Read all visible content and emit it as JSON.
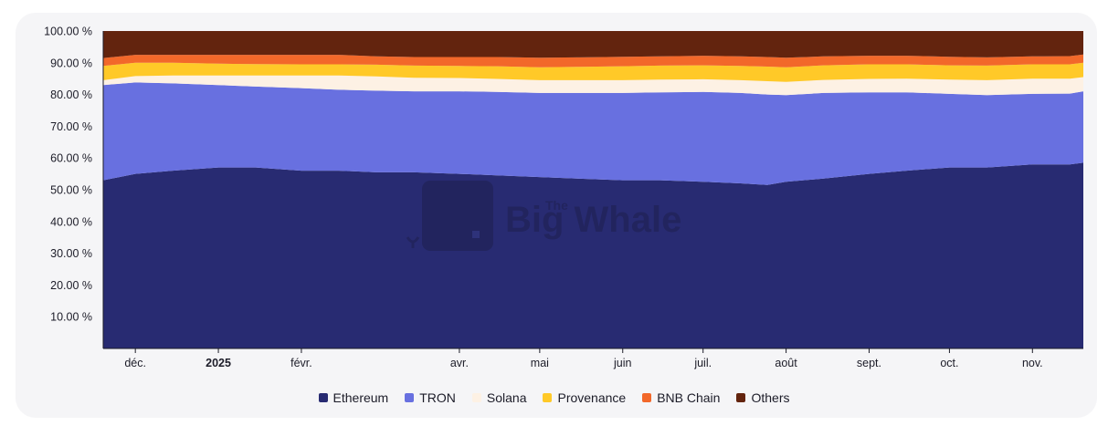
{
  "watermark": {
    "brand_small": "The",
    "brand_text": "Big Whale"
  },
  "chart_data": {
    "type": "area",
    "stacked": true,
    "normalized": true,
    "x": [
      "2024-11-19",
      "2024-12-01",
      "2024-12-15",
      "2025-01-01",
      "2025-01-15",
      "2025-02-01",
      "2025-02-15",
      "2025-03-01",
      "2025-03-15",
      "2025-04-01",
      "2025-04-15",
      "2025-05-01",
      "2025-05-15",
      "2025-06-01",
      "2025-06-15",
      "2025-07-01",
      "2025-07-15",
      "2025-07-25",
      "2025-08-01",
      "2025-08-15",
      "2025-09-01",
      "2025-09-15",
      "2025-10-01",
      "2025-10-15",
      "2025-11-01",
      "2025-11-15",
      "2025-11-20"
    ],
    "series": [
      {
        "name": "Ethereum",
        "color": "#282b72",
        "values": [
          53,
          55,
          56,
          57,
          57,
          56,
          56,
          55.5,
          55.5,
          55,
          54.5,
          54,
          53.5,
          53,
          53,
          52.5,
          52,
          51.5,
          52.5,
          53.5,
          55,
          56,
          57,
          57,
          58,
          58,
          58.5
        ]
      },
      {
        "name": "TRON",
        "color": "#6870e0",
        "values": [
          30,
          28.8,
          27.5,
          26,
          25.5,
          26,
          25.5,
          25.7,
          25.5,
          26,
          26.3,
          26.5,
          27,
          27.5,
          27.7,
          28.3,
          28.5,
          28.5,
          27.3,
          27,
          25.7,
          24.7,
          23.2,
          22.8,
          22.2,
          22.3,
          22.5
        ]
      },
      {
        "name": "Solana",
        "color": "#fdf1e4",
        "values": [
          1.5,
          2,
          2.5,
          3,
          3.5,
          4,
          4.5,
          4.5,
          4.3,
          4.2,
          4.1,
          4,
          4,
          4,
          4,
          4,
          4,
          4.2,
          4.2,
          4.1,
          4.2,
          4.3,
          4.5,
          4.7,
          4.8,
          4.7,
          4.5
        ]
      },
      {
        "name": "Provenance",
        "color": "#ffc928",
        "values": [
          4.5,
          4.2,
          4.0,
          3.7,
          3.6,
          3.5,
          3.5,
          3.7,
          3.8,
          3.8,
          4,
          4.1,
          4.2,
          4.4,
          4.4,
          4.4,
          4.5,
          4.6,
          4.6,
          4.6,
          4.6,
          4.5,
          4.5,
          4.6,
          4.5,
          4.5,
          4.5
        ]
      },
      {
        "name": "BNB Chain",
        "color": "#f2682a",
        "values": [
          2.5,
          2.5,
          2.5,
          2.8,
          2.9,
          3,
          3,
          2.6,
          2.7,
          2.8,
          2.9,
          3,
          3,
          3,
          2.9,
          3,
          3,
          3,
          3,
          2.8,
          2.7,
          2.7,
          2.7,
          2.6,
          2.5,
          2.6,
          2.6
        ]
      },
      {
        "name": "Others",
        "color": "#63240e",
        "values": [
          8.5,
          7.5,
          7.5,
          7.5,
          7.5,
          7.5,
          7.5,
          8,
          8.2,
          8.2,
          8.2,
          8.4,
          8.3,
          8.1,
          8,
          7.8,
          8,
          8.2,
          8.4,
          8,
          7.8,
          7.8,
          8.1,
          8.3,
          8,
          7.9,
          7.4
        ]
      }
    ],
    "xaxis": {
      "ticks": [
        {
          "date": "2024-12-01",
          "label": "déc.",
          "bold": false
        },
        {
          "date": "2025-01-01",
          "label": "2025",
          "bold": true
        },
        {
          "date": "2025-02-01",
          "label": "févr.",
          "bold": false
        },
        {
          "date": "2025-04-01",
          "label": "avr.",
          "bold": false
        },
        {
          "date": "2025-05-01",
          "label": "mai",
          "bold": false
        },
        {
          "date": "2025-06-01",
          "label": "juin",
          "bold": false
        },
        {
          "date": "2025-07-01",
          "label": "juil.",
          "bold": false
        },
        {
          "date": "2025-08-01",
          "label": "août",
          "bold": false
        },
        {
          "date": "2025-09-01",
          "label": "sept.",
          "bold": false
        },
        {
          "date": "2025-10-01",
          "label": "oct.",
          "bold": false
        },
        {
          "date": "2025-11-01",
          "label": "nov.",
          "bold": false
        }
      ]
    },
    "yaxis": {
      "ylim": [
        0,
        100
      ],
      "ticks": [
        {
          "value": 10,
          "label": "10.00 %"
        },
        {
          "value": 20,
          "label": "20.00 %"
        },
        {
          "value": 30,
          "label": "30.00 %"
        },
        {
          "value": 40,
          "label": "40.00 %"
        },
        {
          "value": 50,
          "label": "50.00 %"
        },
        {
          "value": 60,
          "label": "60.00 %"
        },
        {
          "value": 70,
          "label": "70.00 %"
        },
        {
          "value": 80,
          "label": "80.00 %"
        },
        {
          "value": 90,
          "label": "90.00 %"
        },
        {
          "value": 100,
          "label": "100.00 %"
        }
      ]
    },
    "legend": {
      "position": "bottom-center"
    }
  }
}
